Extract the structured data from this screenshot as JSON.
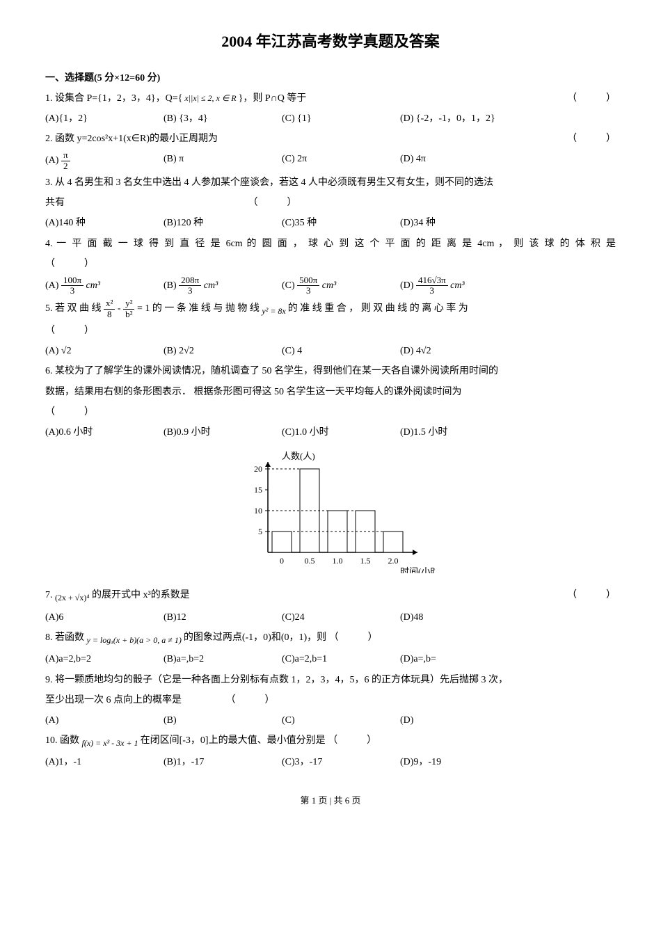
{
  "title": "2004 年江苏高考数学真题及答案",
  "section1_head": "一、选择题(5 分×12=60 分)",
  "blank_paren": "（　　　）",
  "footer": "第 1 页 | 共 6 页",
  "q1": {
    "stem_a": "1. 设集合 P={1，2，3，4}，Q={",
    "stem_b": " x||x| ≤ 2, x ∈ R ",
    "stem_c": "}，则 P∩Q 等于",
    "A": "(A){1，2}",
    "B": "(B) {3，4}",
    "C": "(C) {1}",
    "D": "(D) {-2，-1，0，1，2}"
  },
  "q2": {
    "stem": "2. 函数 y=2cos²x+1(x∈R)的最小正周期为",
    "A_pre": "(A) ",
    "A_num": "π",
    "A_den": "2",
    "B": "(B) π",
    "C": "(C) 2π",
    "D": "(D) 4π"
  },
  "q3": {
    "line1": "3. 从 4 名男生和 3 名女生中选出 4 人参加某个座谈会，若这 4 人中必须既有男生又有女生，则不同的选法",
    "line2": "共有",
    "A": "(A)140 种",
    "B": "(B)120 种",
    "C": "(C)35 种",
    "D": "(D)34 种"
  },
  "q4": {
    "stem": "4. 一 平 面 截 一 球 得 到 直 径 是 6cm 的 圆 面 ， 球 心 到 这 个 平 面 的 距 离 是 4cm ， 则 该 球 的 体 积 是",
    "A_pre": "(A) ",
    "A_num": "100π",
    "A_den": "3",
    "A_suf": " cm³",
    "B_pre": "(B)  ",
    "B_num": "208π",
    "B_den": "3",
    "B_suf": " cm³",
    "C_pre": "(C)  ",
    "C_num": "500π",
    "C_den": "3",
    "C_suf": " cm³",
    "D_pre": "(D)  ",
    "D_num": "416√3π",
    "D_den": "3",
    "D_suf": " cm³"
  },
  "q5": {
    "stem_a": "5. 若 双 曲 线 ",
    "eq_n1": "x²",
    "eq_d1": "8",
    "eq_minus": " - ",
    "eq_n2": "y²",
    "eq_d2": "b²",
    "eq_eq": " = 1",
    "stem_b": " 的 一 条 准 线 与 抛 物 线 ",
    "parab": " y² = 8x ",
    "stem_c": " 的 准 线 重 合 ， 则 双 曲 线 的 离 心 率 为",
    "A": "(A) √2",
    "B": "(B) 2√2",
    "C": "(C) 4",
    "D": "(D) 4√2"
  },
  "q6": {
    "line1": "6. 某校为了了解学生的课外阅读情况，随机调查了 50 名学生，得到他们在某一天各自课外阅读所用时间的",
    "line2": "数据，结果用右侧的条形图表示．  根据条形图可得这 50 名学生这一天平均每人的课外阅读时间为",
    "A": "(A)0.6 小时",
    "B": "(B)0.9 小时",
    "C": "(C)1.0 小时",
    "D": "(D)1.5 小时"
  },
  "chart": {
    "y_label": "人数(人)",
    "x_label": "时间(小时)",
    "y_ticks": [
      "5",
      "10",
      "15",
      "20"
    ],
    "x_ticks": [
      "0",
      "0.5",
      "1.0",
      "1.5",
      "2.0"
    ],
    "bars": [
      {
        "x": 0,
        "h": 5
      },
      {
        "x": 0.5,
        "h": 20
      },
      {
        "x": 1.0,
        "h": 10
      },
      {
        "x": 1.5,
        "h": 10
      },
      {
        "x": 2.0,
        "h": 5
      }
    ],
    "axis_color": "#000",
    "dash_color": "#000",
    "bg": "#ffffff",
    "bar_fill": "#ffffff",
    "bar_stroke": "#000"
  },
  "q7": {
    "stem_a": "7. ",
    "expr": "(2x + √x)⁴",
    "stem_b": " 的展开式中 x³的系数是",
    "A": "(A)6",
    "B": "(B)12",
    "C": "(C)24",
    "D": "(D)48"
  },
  "q8": {
    "stem_a": "8. 若函数 ",
    "fn": " y = logₐ(x + b)(a > 0, a ≠ 1) ",
    "stem_b": "的图象过两点(-1，0)和(0，1)，则 （　　　）",
    "A": "(A)a=2,b=2",
    "B": "(B)a=,b=2",
    "C": "(C)a=2,b=1",
    "D": "(D)a=,b="
  },
  "q9": {
    "line1": "9. 将一颗质地均匀的骰子（它是一种各面上分别标有点数 1，2，3，4，5，6 的正方体玩具）先后抛掷 3 次，",
    "line2": "至少出现一次 6 点向上的概率是",
    "A": "(A)",
    "B": "(B)",
    "C": "(C)",
    "D": "(D)"
  },
  "q10": {
    "stem_a": "10. 函数 ",
    "fn": " f(x) = x³ - 3x + 1 ",
    "stem_b": "在闭区间[-3，0]上的最大值、最小值分别是 （　　　）",
    "A": "(A)1，-1",
    "B": "(B)1，-17",
    "C": "(C)3，-17",
    "D": "(D)9，-19"
  }
}
